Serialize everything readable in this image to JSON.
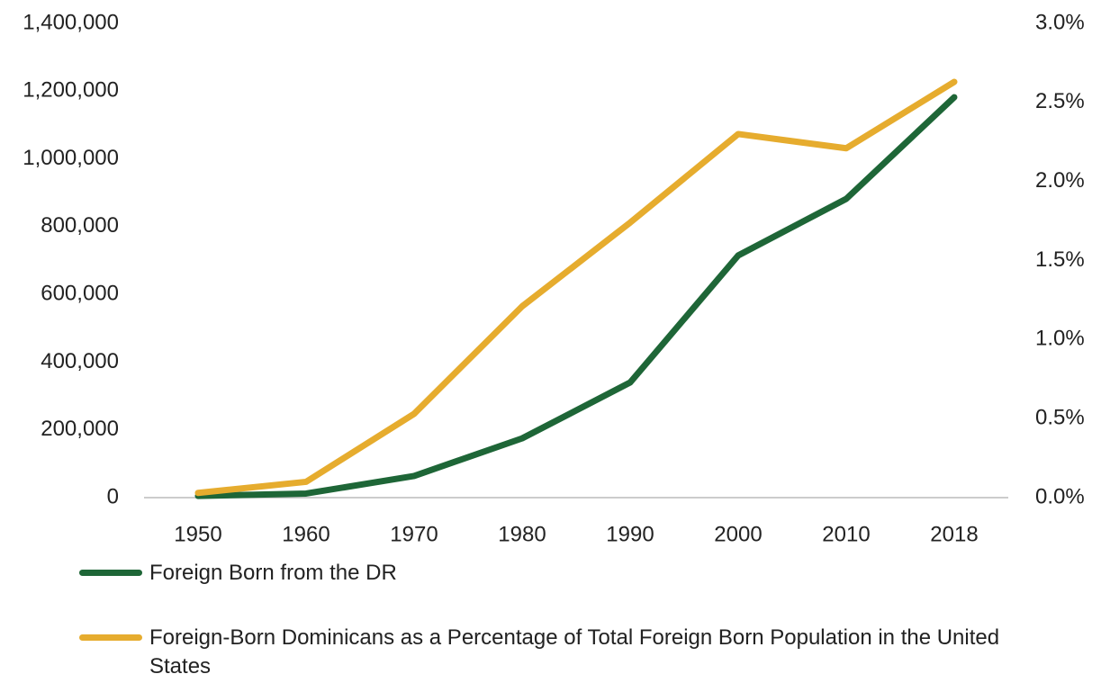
{
  "chart_data": {
    "type": "line",
    "categories": [
      "1950",
      "1960",
      "1970",
      "1980",
      "1990",
      "2000",
      "2010",
      "2018"
    ],
    "series": [
      {
        "name": "Foreign Born from the DR",
        "color": "#1e6637",
        "values": [
          5000,
          12000,
          64000,
          175000,
          340000,
          715000,
          882000,
          1182000
        ]
      },
      {
        "name": "Foreign-Born Dominicans as a Percentage of Total Foreign Born Population in the United States",
        "color": "#e6ac2e",
        "axis": "y2",
        "values": [
          0.03,
          0.1,
          0.53,
          1.21,
          1.74,
          2.3,
          2.21,
          2.63
        ]
      }
    ],
    "ylim": [
      0,
      1400000
    ],
    "yticks": [
      0,
      {
        "value": 200000,
        "label": "200,000"
      },
      {
        "value": 400000,
        "label": "400,000"
      },
      {
        "value": 600000,
        "label": "600,000"
      },
      {
        "value": 800000,
        "label": "800,000"
      },
      {
        "value": 1000000,
        "label": "1,000,000"
      },
      {
        "value": 1200000,
        "label": "1,200,000"
      },
      {
        "value": 1400000,
        "label": "1,400,000"
      }
    ],
    "y2lim": [
      0,
      3
    ],
    "y2ticks": [
      {
        "value": 0,
        "label": "0.0%"
      },
      {
        "value": 0.5,
        "label": "0.5%"
      },
      {
        "value": 1,
        "label": "1.0%"
      },
      {
        "value": 1.5,
        "label": "1.5%"
      },
      {
        "value": 2,
        "label": "2.0%"
      },
      {
        "value": 2.5,
        "label": "2.5%"
      },
      {
        "value": 3,
        "label": "3.0%"
      }
    ],
    "grid": false
  }
}
